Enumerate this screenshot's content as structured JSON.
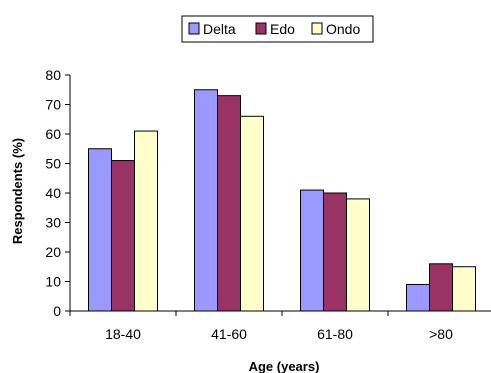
{
  "chart_data": {
    "type": "bar",
    "categories": [
      "18-40",
      "41-60",
      "61-80",
      ">80"
    ],
    "series": [
      {
        "name": "Delta",
        "values": [
          55,
          75,
          41,
          9
        ],
        "color": "#9999ff"
      },
      {
        "name": "Edo",
        "values": [
          51,
          73,
          40,
          16
        ],
        "color": "#993366"
      },
      {
        "name": "Ondo",
        "values": [
          61,
          66,
          38,
          15
        ],
        "color": "#ffffcc"
      }
    ],
    "title": "",
    "xlabel": "Age (years)",
    "ylabel": "Respondents (%)",
    "ylim": [
      0,
      80
    ],
    "yticks": [
      0,
      10,
      20,
      30,
      40,
      50,
      60,
      70,
      80
    ],
    "grid": false,
    "legend_position": "top-center"
  }
}
